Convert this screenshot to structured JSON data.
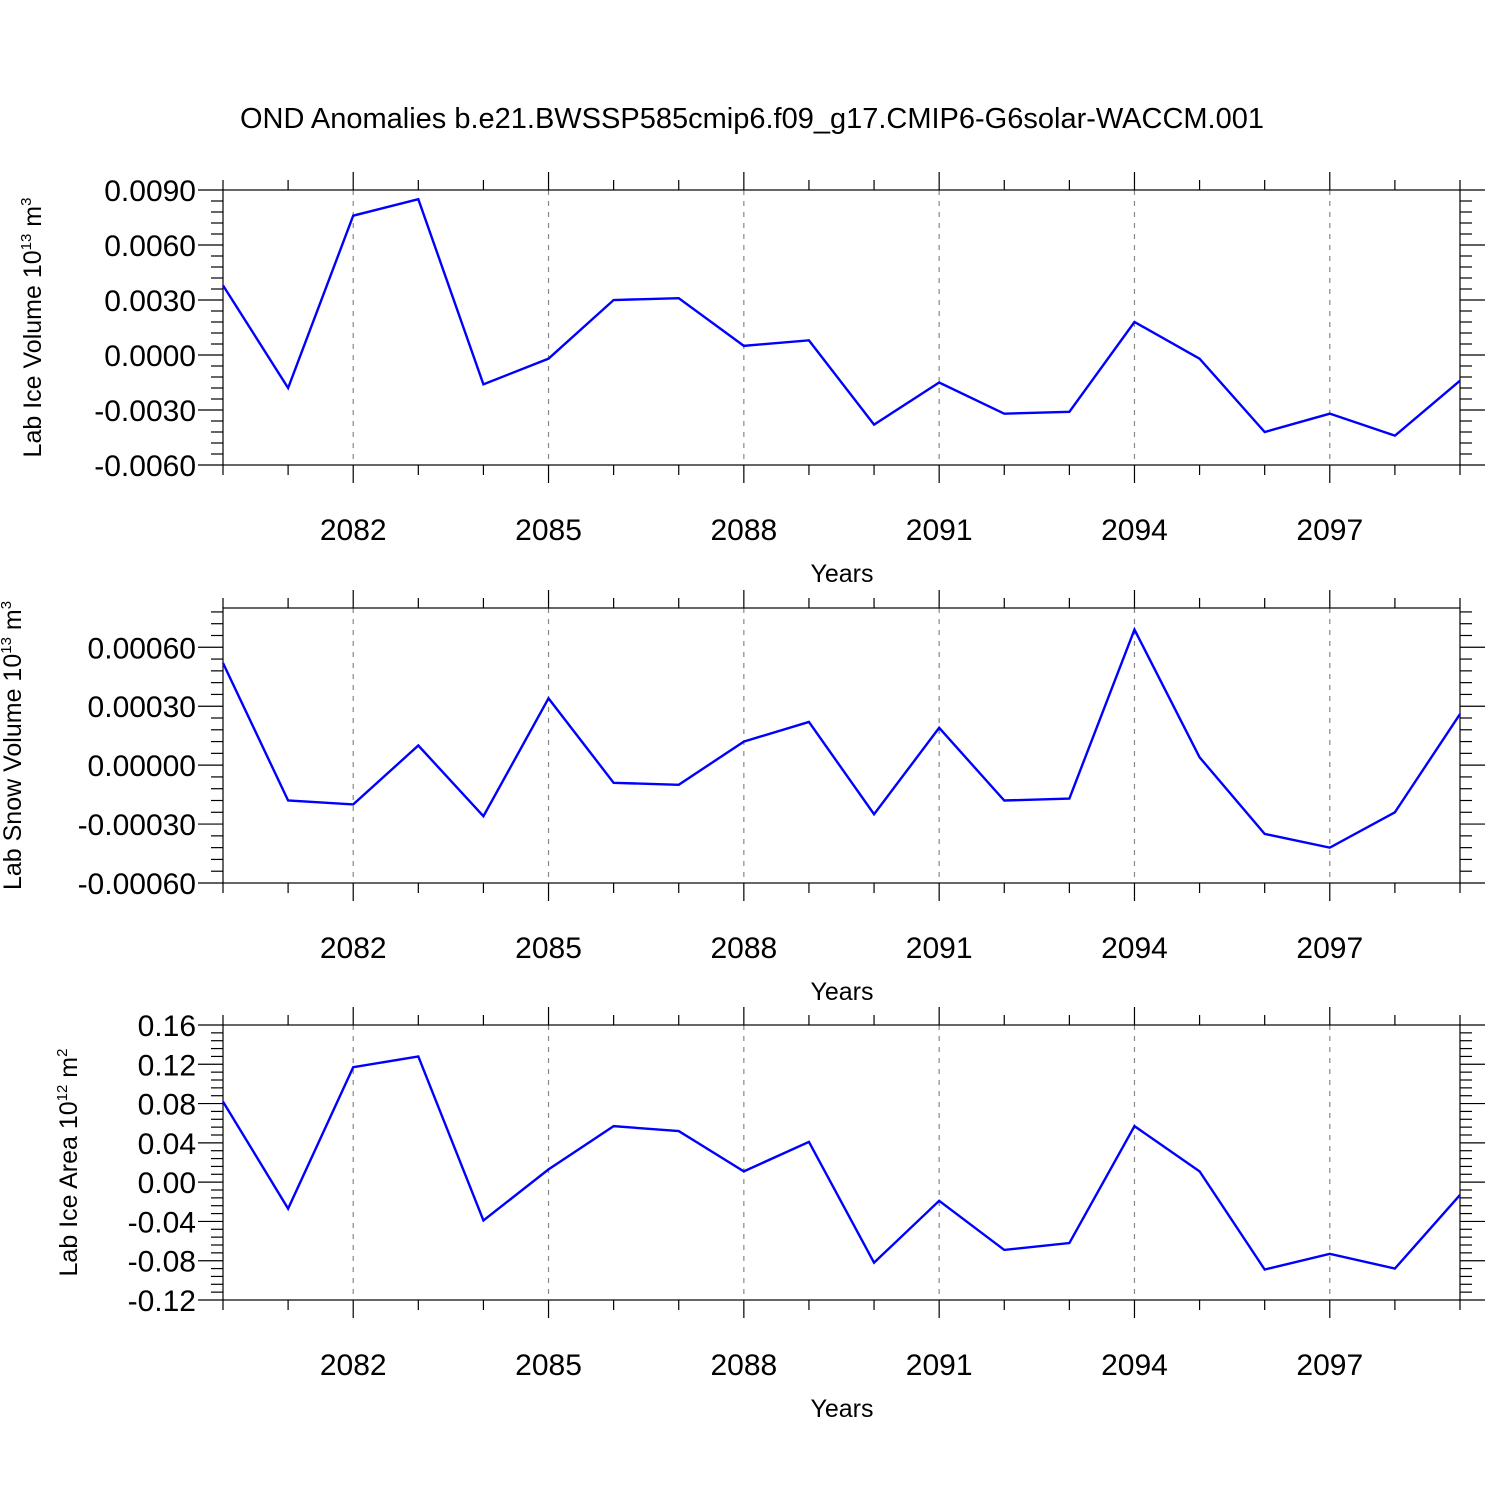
{
  "title": "OND Anomalies b.e21.BWSSP585cmip6.f09_g17.CMIP6-G6solar-WACCM.001",
  "colors": {
    "line": "#0000ff",
    "axis": "#000000",
    "grid": "#888888"
  },
  "chart_data": [
    {
      "type": "line",
      "xlabel": "Years",
      "ylabel": {
        "text": "Lab Ice Volume 10",
        "exp": "13",
        "unit": " m",
        "unit_exp": "3"
      },
      "x": [
        2080,
        2081,
        2082,
        2083,
        2084,
        2085,
        2086,
        2087,
        2088,
        2089,
        2090,
        2091,
        2092,
        2093,
        2094,
        2095,
        2096,
        2097,
        2098,
        2099
      ],
      "xlim": [
        2080,
        2099
      ],
      "xticks": [
        2082,
        2085,
        2088,
        2091,
        2094,
        2097
      ],
      "xtick_labels": [
        "2082",
        "2085",
        "2088",
        "2091",
        "2094",
        "2097"
      ],
      "ylim": [
        -0.006,
        0.009
      ],
      "yticks": [
        -0.006,
        -0.003,
        0.0,
        0.003,
        0.006,
        0.009
      ],
      "ytick_labels": [
        "-0.0060",
        "-0.0030",
        "0.0000",
        "0.0030",
        "0.0060",
        "0.0090"
      ],
      "series": [
        {
          "values": [
            0.0038,
            -0.0018,
            0.0076,
            0.0085,
            -0.0016,
            -0.0002,
            0.003,
            0.0031,
            0.0005,
            0.0008,
            -0.0038,
            -0.0015,
            -0.0032,
            -0.0031,
            0.0018,
            -0.0002,
            -0.0042,
            -0.0032,
            -0.0044,
            -0.0014
          ]
        }
      ]
    },
    {
      "type": "line",
      "xlabel": "Years",
      "ylabel": {
        "text": "Lab Snow Volume 10",
        "exp": "13",
        "unit": " m",
        "unit_exp": "3"
      },
      "x": [
        2080,
        2081,
        2082,
        2083,
        2084,
        2085,
        2086,
        2087,
        2088,
        2089,
        2090,
        2091,
        2092,
        2093,
        2094,
        2095,
        2096,
        2097,
        2098,
        2099
      ],
      "xlim": [
        2080,
        2099
      ],
      "xticks": [
        2082,
        2085,
        2088,
        2091,
        2094,
        2097
      ],
      "xtick_labels": [
        "2082",
        "2085",
        "2088",
        "2091",
        "2094",
        "2097"
      ],
      "ylim": [
        -0.0006,
        0.0008
      ],
      "yticks": [
        -0.0006,
        -0.0003,
        0.0,
        0.0003,
        0.0006
      ],
      "ytick_labels": [
        "-0.00060",
        "-0.00030",
        "0.00000",
        "0.00030",
        "0.00060"
      ],
      "series": [
        {
          "values": [
            0.00052,
            -0.00018,
            -0.0002,
            0.0001,
            -0.00026,
            0.00034,
            -9e-05,
            -0.0001,
            0.00012,
            0.00022,
            -0.00025,
            0.00019,
            -0.00018,
            -0.00017,
            0.00069,
            4e-05,
            -0.00035,
            -0.00042,
            -0.00024,
            0.00026
          ]
        }
      ]
    },
    {
      "type": "line",
      "xlabel": "Years",
      "ylabel": {
        "text": "Lab Ice Area 10",
        "exp": "12",
        "unit": " m",
        "unit_exp": "2"
      },
      "x": [
        2080,
        2081,
        2082,
        2083,
        2084,
        2085,
        2086,
        2087,
        2088,
        2089,
        2090,
        2091,
        2092,
        2093,
        2094,
        2095,
        2096,
        2097,
        2098,
        2099
      ],
      "xlim": [
        2080,
        2099
      ],
      "xticks": [
        2082,
        2085,
        2088,
        2091,
        2094,
        2097
      ],
      "xtick_labels": [
        "2082",
        "2085",
        "2088",
        "2091",
        "2094",
        "2097"
      ],
      "ylim": [
        -0.12,
        0.16
      ],
      "yticks": [
        -0.12,
        -0.08,
        -0.04,
        0.0,
        0.04,
        0.08,
        0.12,
        0.16
      ],
      "ytick_labels": [
        "-0.12",
        "-0.08",
        "-0.04",
        "0.00",
        "0.04",
        "0.08",
        "0.12",
        "0.16"
      ],
      "series": [
        {
          "values": [
            0.082,
            -0.027,
            0.117,
            0.128,
            -0.039,
            0.013,
            0.057,
            0.052,
            0.011,
            0.041,
            -0.082,
            -0.019,
            -0.069,
            -0.062,
            0.057,
            0.011,
            -0.089,
            -0.073,
            -0.088,
            -0.013
          ]
        }
      ]
    }
  ]
}
